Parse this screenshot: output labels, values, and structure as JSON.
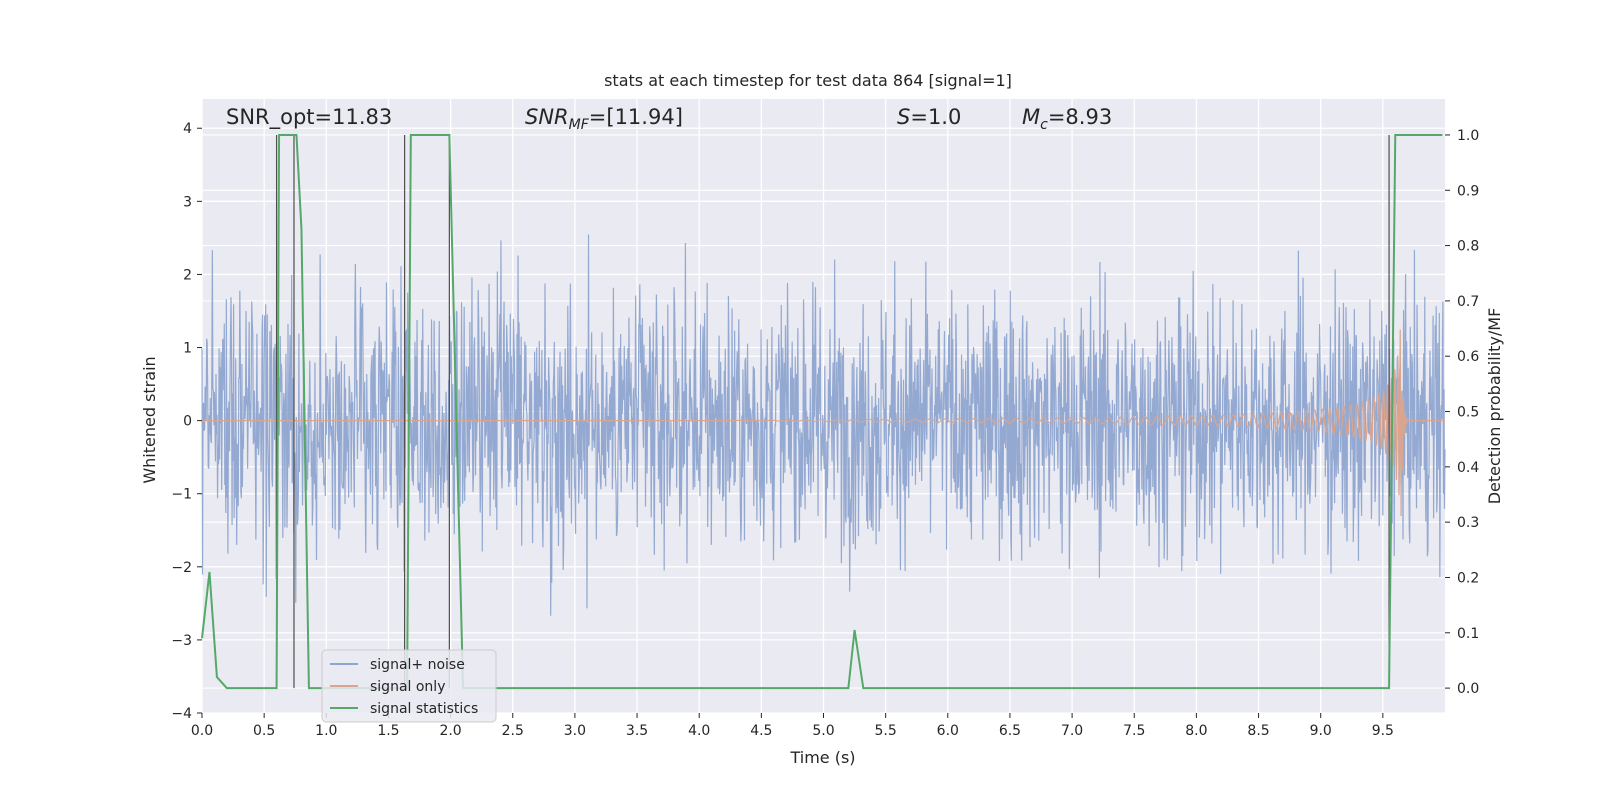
{
  "chart_data": {
    "type": "line",
    "title": "stats at each timestep for test data 864 [signal=1]",
    "xlabel": "Time (s)",
    "ylabel": "Whitened strain",
    "y2label": "Detection probability/MF",
    "xlim": [
      0.0,
      10.0
    ],
    "ylim": [
      -4.0,
      4.4
    ],
    "y2lim": [
      -0.045,
      1.065
    ],
    "x_ticks": [
      0.0,
      0.5,
      1.0,
      1.5,
      2.0,
      2.5,
      3.0,
      3.5,
      4.0,
      4.5,
      5.0,
      5.5,
      6.0,
      6.5,
      7.0,
      7.5,
      8.0,
      8.5,
      9.0,
      9.5
    ],
    "x_tick_labels": [
      "0.0",
      "0.5",
      "1.0",
      "1.5",
      "2.0",
      "2.5",
      "3.0",
      "3.5",
      "4.0",
      "4.5",
      "5.0",
      "5.5",
      "6.0",
      "6.5",
      "7.0",
      "7.5",
      "8.0",
      "8.5",
      "9.0",
      "9.5"
    ],
    "y_ticks": [
      -4,
      -3,
      -2,
      -1,
      0,
      1,
      2,
      3,
      4
    ],
    "y_tick_labels": [
      "−4",
      "−3",
      "−2",
      "−1",
      "0",
      "1",
      "2",
      "3",
      "4"
    ],
    "y2_ticks": [
      0.0,
      0.1,
      0.2,
      0.3,
      0.4,
      0.5,
      0.6,
      0.7,
      0.8,
      0.9,
      1.0
    ],
    "y2_tick_labels": [
      "0.0",
      "0.1",
      "0.2",
      "0.3",
      "0.4",
      "0.5",
      "0.6",
      "0.7",
      "0.8",
      "0.9",
      "1.0"
    ],
    "grid": true,
    "legend_position": "lower-left",
    "annotations": {
      "snr_opt": "SNR_opt=11.83",
      "snr_mf_sym": "SNR",
      "snr_mf_sub": "MF",
      "snr_mf_val": "=[11.94]",
      "s_sym": "S",
      "s_val": "=1.0",
      "mc_sym": "M",
      "mc_sub": "c",
      "mc_val": "=8.93"
    },
    "series": [
      {
        "name": "signal+ noise",
        "color": "#8fa5cf",
        "kind": "noise",
        "sigma": 0.9,
        "x_start": 0.0,
        "x_end": 10.0
      },
      {
        "name": "signal only",
        "color": "#d9a58e",
        "kind": "chirp",
        "tc": 9.65,
        "peak": 1.35,
        "x_start": 0.0,
        "x_end": 10.0
      },
      {
        "name": "signal statistics",
        "color": "#55a868",
        "axis": "right",
        "points": [
          [
            0.0,
            0.09
          ],
          [
            0.06,
            0.21
          ],
          [
            0.12,
            0.02
          ],
          [
            0.2,
            0.0
          ],
          [
            0.25,
            0.0
          ],
          [
            0.6,
            0.0
          ],
          [
            0.62,
            1.0
          ],
          [
            0.68,
            1.0
          ],
          [
            0.76,
            1.0
          ],
          [
            0.8,
            0.83
          ],
          [
            0.86,
            0.0
          ],
          [
            1.65,
            0.0
          ],
          [
            1.68,
            1.0
          ],
          [
            1.99,
            1.0
          ],
          [
            2.1,
            0.0
          ],
          [
            5.2,
            0.0
          ],
          [
            5.25,
            0.105
          ],
          [
            5.32,
            0.0
          ],
          [
            9.55,
            0.0
          ],
          [
            9.6,
            1.0
          ],
          [
            9.98,
            1.0
          ]
        ]
      }
    ],
    "detection_lines": [
      0.6,
      0.74,
      1.63,
      1.99,
      9.55
    ],
    "detection_line_color": "#4f4f4f"
  }
}
